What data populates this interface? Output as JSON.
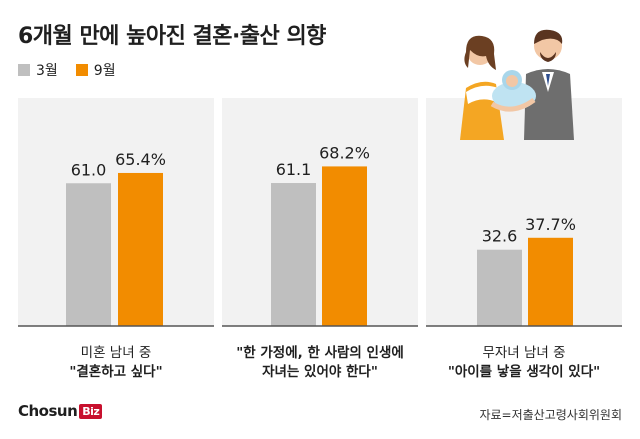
{
  "title": "6개월 만에 높아진 결혼·출산 의향",
  "legend": [
    {
      "label": "3월",
      "color": "#bfbfbf"
    },
    {
      "label": "9월",
      "color": "#f28c00"
    }
  ],
  "chart_data": {
    "type": "bar",
    "series": [
      {
        "name": "3월",
        "values": [
          61.0,
          61.1,
          32.6
        ]
      },
      {
        "name": "9월",
        "values": [
          65.4,
          68.2,
          37.7
        ]
      }
    ],
    "value_labels": {
      "3월": [
        "61.0",
        "61.1",
        "32.6"
      ],
      "9월": [
        "65.4%",
        "68.2%",
        "37.7%"
      ]
    },
    "categories": [
      {
        "line1": "미혼 남녀 중",
        "line2": "\"결혼하고 싶다\""
      },
      {
        "line1": "\"한 가정에, 한 사람의 인생에",
        "line2": "자녀는 있어야 한다\""
      },
      {
        "line1": "무자녀 남녀 중",
        "line2": "\"아이를 낳을 생각이 있다\""
      }
    ],
    "ylim": [
      0,
      100
    ],
    "colors": {
      "3월": "#bfbfbf",
      "9월": "#f28c00"
    },
    "grid": false,
    "legend_position": "top-left"
  },
  "footer": {
    "logo_main": "Chosun",
    "logo_biz": "Biz",
    "source": "자료=저출산고령사회위원회"
  },
  "illustration": {
    "icon": "family-holding-baby-icon"
  }
}
